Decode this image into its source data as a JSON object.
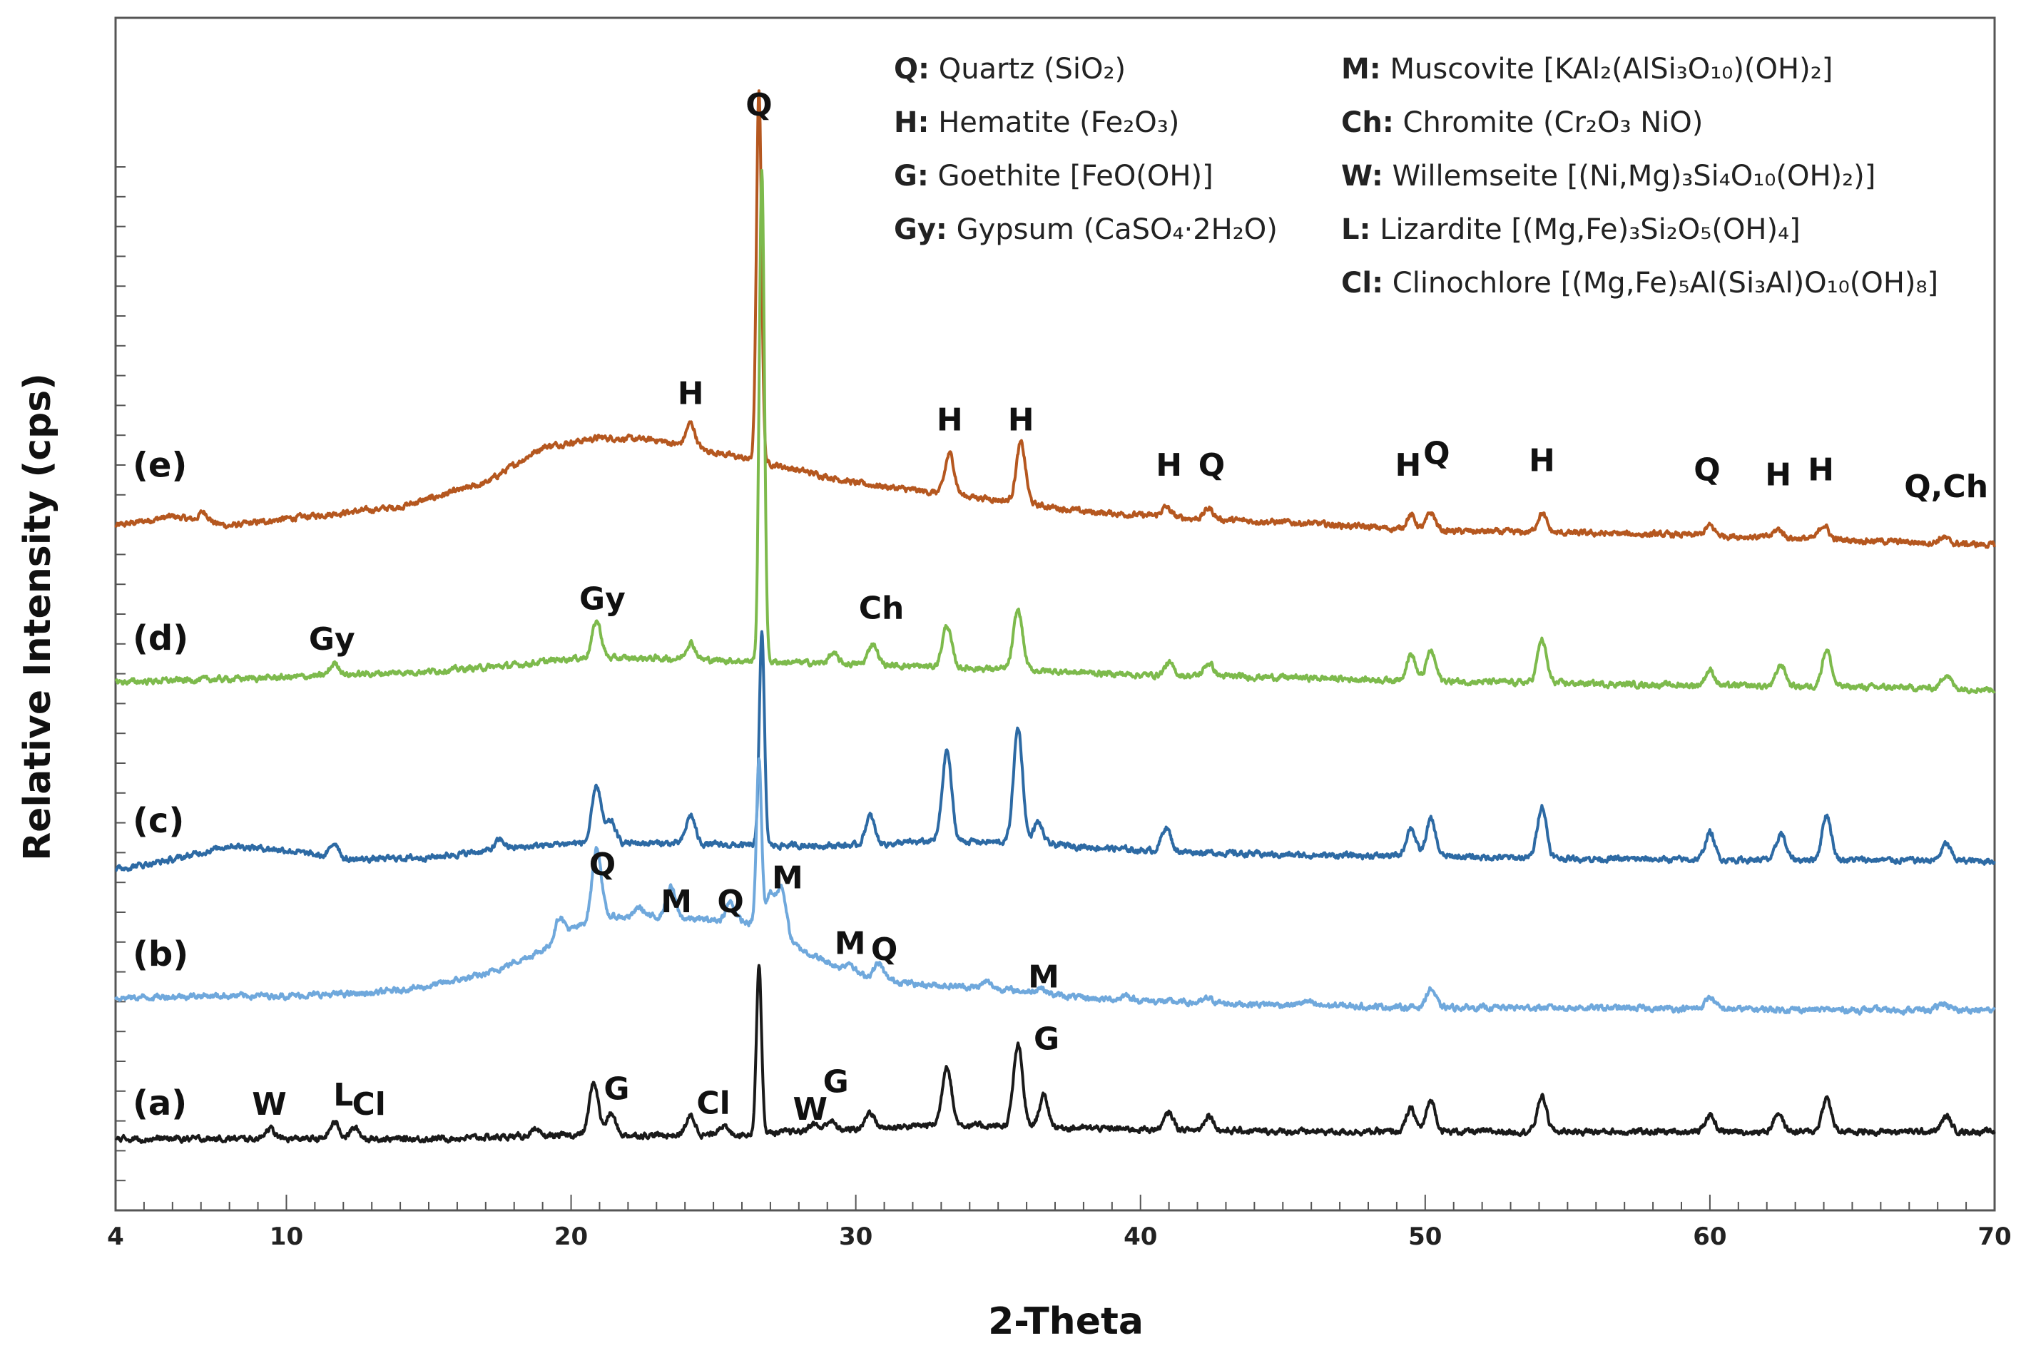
{
  "chart_data": {
    "type": "line",
    "title": "",
    "xlabel": "2-Theta",
    "ylabel": "Relative Intensity (cps)",
    "xlim": [
      4,
      70
    ],
    "xticks": [
      4,
      10,
      20,
      30,
      40,
      50,
      60,
      70
    ],
    "y_units": "relative intensity (arbitrary, traces vertically offset)",
    "ylim": [
      0,
      100
    ],
    "grid": false,
    "series": [
      {
        "name": "(e)",
        "color": "#B5571F",
        "baseline": [
          [
            4,
            57.4
          ],
          [
            6,
            58.2
          ],
          [
            8,
            57.4
          ],
          [
            10,
            58.0
          ],
          [
            14,
            59.0
          ],
          [
            17,
            61.0
          ],
          [
            19,
            64.0
          ],
          [
            21,
            64.8
          ],
          [
            23,
            64.6
          ],
          [
            25,
            63.6
          ],
          [
            27,
            62.6
          ],
          [
            30,
            61.0
          ],
          [
            32,
            60.4
          ],
          [
            35,
            59.6
          ],
          [
            38,
            58.6
          ],
          [
            42,
            58.0
          ],
          [
            46,
            57.6
          ],
          [
            50,
            57.0
          ],
          [
            55,
            56.8
          ],
          [
            60,
            56.6
          ],
          [
            65,
            56.2
          ],
          [
            70,
            55.8
          ]
        ],
        "peaks": [
          [
            7.1,
            0.8
          ],
          [
            24.2,
            2.0
          ],
          [
            26.6,
            31.2
          ],
          [
            33.3,
            3.4
          ],
          [
            35.8,
            5.0
          ],
          [
            40.9,
            0.8
          ],
          [
            42.4,
            0.9
          ],
          [
            49.5,
            1.2
          ],
          [
            50.2,
            1.5
          ],
          [
            54.1,
            1.6
          ],
          [
            60.0,
            0.8
          ],
          [
            62.4,
            0.7
          ],
          [
            64.0,
            1.2
          ],
          [
            68.2,
            0.5
          ]
        ]
      },
      {
        "name": "(d)",
        "color": "#7DBA4C",
        "baseline": [
          [
            4,
            44.3
          ],
          [
            10,
            44.7
          ],
          [
            15,
            45.2
          ],
          [
            18,
            45.7
          ],
          [
            20,
            46.3
          ],
          [
            23,
            46.3
          ],
          [
            27,
            46.0
          ],
          [
            30,
            45.8
          ],
          [
            35,
            45.4
          ],
          [
            40,
            44.9
          ],
          [
            45,
            44.7
          ],
          [
            50,
            44.4
          ],
          [
            55,
            44.2
          ],
          [
            60,
            44.0
          ],
          [
            65,
            43.9
          ],
          [
            70,
            43.7
          ]
        ],
        "peaks": [
          [
            11.7,
            1.0
          ],
          [
            20.9,
            3.1
          ],
          [
            24.2,
            1.4
          ],
          [
            26.7,
            41.0
          ],
          [
            29.2,
            0.8
          ],
          [
            30.6,
            1.8
          ],
          [
            33.2,
            3.5
          ],
          [
            35.7,
            5.0
          ],
          [
            41.0,
            1.0
          ],
          [
            42.4,
            1.1
          ],
          [
            49.5,
            2.2
          ],
          [
            50.2,
            2.5
          ],
          [
            54.1,
            3.6
          ],
          [
            60.0,
            1.3
          ],
          [
            62.5,
            1.8
          ],
          [
            64.1,
            3.1
          ],
          [
            68.3,
            1.2
          ]
        ]
      },
      {
        "name": "(c)",
        "color": "#2D6AA4",
        "baseline": [
          [
            4,
            28.6
          ],
          [
            6,
            29.4
          ],
          [
            8,
            30.6
          ],
          [
            10,
            30.2
          ],
          [
            12,
            29.4
          ],
          [
            15,
            29.6
          ],
          [
            18,
            30.4
          ],
          [
            20,
            30.8
          ],
          [
            23,
            30.8
          ],
          [
            26,
            30.6
          ],
          [
            30,
            30.6
          ],
          [
            33,
            31.0
          ],
          [
            36,
            30.8
          ],
          [
            40,
            30.2
          ],
          [
            45,
            29.8
          ],
          [
            50,
            29.7
          ],
          [
            55,
            29.5
          ],
          [
            60,
            29.4
          ],
          [
            65,
            29.4
          ],
          [
            70,
            29.3
          ]
        ],
        "peaks": [
          [
            11.7,
            1.3
          ],
          [
            17.5,
            0.8
          ],
          [
            20.9,
            4.8
          ],
          [
            21.4,
            1.8
          ],
          [
            24.2,
            2.4
          ],
          [
            26.7,
            17.8
          ],
          [
            30.5,
            2.4
          ],
          [
            33.2,
            7.6
          ],
          [
            35.7,
            9.6
          ],
          [
            36.4,
            1.8
          ],
          [
            40.9,
            2.0
          ],
          [
            49.5,
            2.4
          ],
          [
            50.2,
            3.1
          ],
          [
            54.1,
            4.4
          ],
          [
            60.0,
            2.3
          ],
          [
            62.5,
            2.2
          ],
          [
            64.1,
            3.8
          ],
          [
            68.3,
            1.4
          ]
        ]
      },
      {
        "name": "(b)",
        "color": "#6FA8DC",
        "baseline": [
          [
            4,
            17.8
          ],
          [
            7,
            18.0
          ],
          [
            10,
            18.0
          ],
          [
            13,
            18.2
          ],
          [
            15,
            18.8
          ],
          [
            17,
            19.8
          ],
          [
            19,
            21.8
          ],
          [
            20,
            23.5
          ],
          [
            21,
            24.6
          ],
          [
            22,
            24.6
          ],
          [
            23,
            24.6
          ],
          [
            24.5,
            24.4
          ],
          [
            26,
            24.2
          ],
          [
            27,
            23.6
          ],
          [
            28,
            22.0
          ],
          [
            29,
            20.8
          ],
          [
            30,
            19.8
          ],
          [
            32,
            19.0
          ],
          [
            35,
            18.6
          ],
          [
            38,
            17.8
          ],
          [
            42,
            17.4
          ],
          [
            46,
            17.2
          ],
          [
            50,
            17.0
          ],
          [
            55,
            17.0
          ],
          [
            60,
            16.9
          ],
          [
            65,
            16.8
          ],
          [
            70,
            16.8
          ]
        ],
        "peaks": [
          [
            19.6,
            1.8
          ],
          [
            20.9,
            5.9
          ],
          [
            22.4,
            0.8
          ],
          [
            23.5,
            2.6
          ],
          [
            25.6,
            1.6
          ],
          [
            26.6,
            13.8
          ],
          [
            27.0,
            3.0
          ],
          [
            27.4,
            4.0
          ],
          [
            29.8,
            0.8
          ],
          [
            30.8,
            1.2
          ],
          [
            34.6,
            0.5
          ],
          [
            36.5,
            0.5
          ],
          [
            39.5,
            0.4
          ],
          [
            42.4,
            0.4
          ],
          [
            45.8,
            0.3
          ],
          [
            50.2,
            1.6
          ],
          [
            60.0,
            1.0
          ],
          [
            68.2,
            0.6
          ]
        ]
      },
      {
        "name": "(a)",
        "color": "#1A1A1A",
        "baseline": [
          [
            4,
            6.0
          ],
          [
            10,
            6.0
          ],
          [
            15,
            6.0
          ],
          [
            20,
            6.3
          ],
          [
            25,
            6.3
          ],
          [
            30,
            6.8
          ],
          [
            33,
            7.2
          ],
          [
            36,
            7.0
          ],
          [
            40,
            6.8
          ],
          [
            45,
            6.6
          ],
          [
            50,
            6.6
          ],
          [
            55,
            6.6
          ],
          [
            60,
            6.6
          ],
          [
            65,
            6.6
          ],
          [
            70,
            6.6
          ]
        ],
        "peaks": [
          [
            9.4,
            0.9
          ],
          [
            11.7,
            1.4
          ],
          [
            12.4,
            0.9
          ],
          [
            18.7,
            0.4
          ],
          [
            20.8,
            4.4
          ],
          [
            21.4,
            1.8
          ],
          [
            24.2,
            1.6
          ],
          [
            25.3,
            0.8
          ],
          [
            26.6,
            14.2
          ],
          [
            28.5,
            0.6
          ],
          [
            29.1,
            0.8
          ],
          [
            30.5,
            1.4
          ],
          [
            33.2,
            5.0
          ],
          [
            35.7,
            6.8
          ],
          [
            36.6,
            2.6
          ],
          [
            41.0,
            1.4
          ],
          [
            42.4,
            1.3
          ],
          [
            49.5,
            1.9
          ],
          [
            50.2,
            2.6
          ],
          [
            54.1,
            3.0
          ],
          [
            60.0,
            1.4
          ],
          [
            62.4,
            1.6
          ],
          [
            64.1,
            2.8
          ],
          [
            68.3,
            1.3
          ]
        ]
      }
    ],
    "trace_labels": [
      {
        "text": "(e)",
        "x": 4.6,
        "y": 61.5
      },
      {
        "text": "(d)",
        "x": 4.6,
        "y": 47.0
      },
      {
        "text": "(c)",
        "x": 4.6,
        "y": 31.7
      },
      {
        "text": "(b)",
        "x": 4.6,
        "y": 20.5
      },
      {
        "text": "(a)",
        "x": 4.6,
        "y": 8.0
      }
    ],
    "annotations": [
      {
        "text": "Q",
        "x": 26.6,
        "y": 91.8
      },
      {
        "text": "H",
        "x": 24.2,
        "y": 67.6
      },
      {
        "text": "H",
        "x": 33.3,
        "y": 65.4
      },
      {
        "text": "H",
        "x": 35.8,
        "y": 65.4
      },
      {
        "text": "H",
        "x": 41.0,
        "y": 61.6
      },
      {
        "text": "Q",
        "x": 42.5,
        "y": 61.6
      },
      {
        "text": "H",
        "x": 49.4,
        "y": 61.6
      },
      {
        "text": "Q",
        "x": 50.4,
        "y": 62.6
      },
      {
        "text": "H",
        "x": 54.1,
        "y": 62.0
      },
      {
        "text": "Q",
        "x": 59.9,
        "y": 61.2
      },
      {
        "text": "H",
        "x": 62.4,
        "y": 60.8
      },
      {
        "text": "H",
        "x": 63.9,
        "y": 61.2
      },
      {
        "text": "Q,Ch",
        "x": 68.3,
        "y": 59.8
      },
      {
        "text": "Gy",
        "x": 21.1,
        "y": 50.4
      },
      {
        "text": "Gy",
        "x": 11.6,
        "y": 47.0
      },
      {
        "text": "Ch",
        "x": 30.9,
        "y": 49.6
      },
      {
        "text": "Q",
        "x": 21.1,
        "y": 28.1
      },
      {
        "text": "M",
        "x": 23.7,
        "y": 25.0
      },
      {
        "text": "Q",
        "x": 25.6,
        "y": 25.0
      },
      {
        "text": "M",
        "x": 27.6,
        "y": 27.0
      },
      {
        "text": "M",
        "x": 29.8,
        "y": 21.5
      },
      {
        "text": "Q",
        "x": 31.0,
        "y": 21.0
      },
      {
        "text": "M",
        "x": 36.6,
        "y": 18.7
      },
      {
        "text": "W",
        "x": 9.4,
        "y": 8.0
      },
      {
        "text": "L",
        "x": 12.0,
        "y": 8.8
      },
      {
        "text": "Cl",
        "x": 12.9,
        "y": 8.0
      },
      {
        "text": "G",
        "x": 21.6,
        "y": 9.3
      },
      {
        "text": "Cl",
        "x": 25.0,
        "y": 8.1
      },
      {
        "text": "W",
        "x": 28.4,
        "y": 7.6
      },
      {
        "text": "G",
        "x": 29.3,
        "y": 9.9
      },
      {
        "text": "G",
        "x": 36.7,
        "y": 13.5
      }
    ],
    "legend": {
      "placement": "top-right",
      "columns": [
        [
          {
            "key": "Q:",
            "name": "Quartz",
            "formula": "(SiO₂)"
          },
          {
            "key": "H:",
            "name": "Hematite",
            "formula": "(Fe₂O₃)"
          },
          {
            "key": "G:",
            "name": "Goethite",
            "formula": "[FeO(OH)]"
          },
          {
            "key": "Gy:",
            "name": "Gypsum",
            "formula": "(CaSO₄·2H₂O)"
          }
        ],
        [
          {
            "key": "M:",
            "name": "Muscovite",
            "formula": "[KAl₂(AlSi₃O₁₀)(OH)₂]"
          },
          {
            "key": "Ch:",
            "name": "Chromite",
            "formula": "(Cr₂O₃ NiO)"
          },
          {
            "key": "W:",
            "name": "Willemseite",
            "formula": "[(Ni,Mg)₃Si₄O₁₀(OH)₂)]"
          },
          {
            "key": "L:",
            "name": "Lizardite",
            "formula": "[(Mg,Fe)₃Si₂O₅(OH)₄]"
          },
          {
            "key": "Cl:",
            "name": "Clinochlore",
            "formula": "[(Mg,Fe)₅Al(Si₃Al)O₁₀(OH)₈]"
          }
        ]
      ]
    }
  }
}
